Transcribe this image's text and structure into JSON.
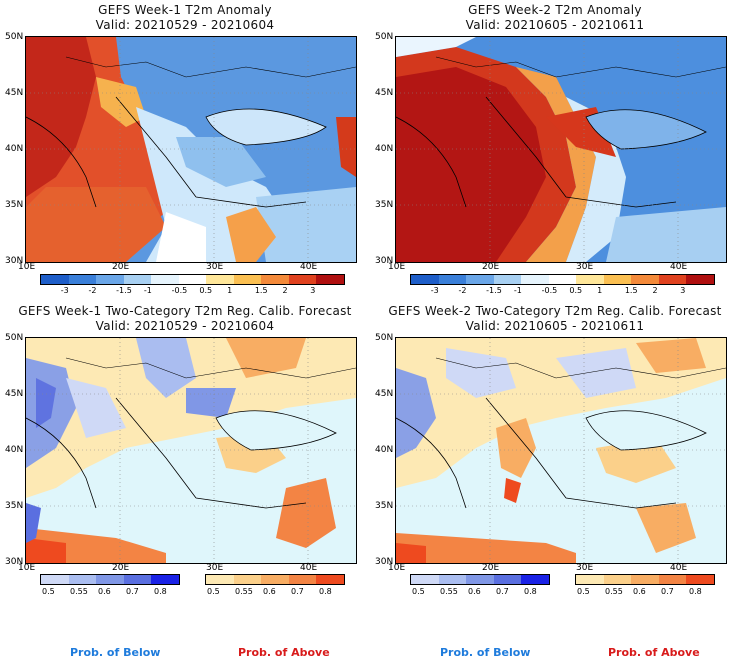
{
  "panels": [
    {
      "title": "GEFS Week-1 T2m Anomaly",
      "valid": "Valid: 20210529 - 20210604"
    },
    {
      "title": "GEFS Week-2 T2m Anomaly",
      "valid": "Valid: 20210605 - 20210611"
    },
    {
      "title": "GEFS Week-1 Two-Category T2m Reg. Calib. Forecast",
      "valid": "Valid: 20210529 - 20210604"
    },
    {
      "title": "GEFS Week-2 Two-Category T2m Reg. Calib. Forecast",
      "valid": "Valid: 20210605 - 20210611"
    }
  ],
  "lat_labels": [
    "50N",
    "45N",
    "40N",
    "35N",
    "30N"
  ],
  "lon_labels": [
    "10E",
    "20E",
    "30E",
    "40E"
  ],
  "anomaly_colorbar": {
    "ticks": [
      "-3",
      "-2",
      "-1.5",
      "-1",
      "-0.5",
      "0.5",
      "1",
      "1.5",
      "2",
      "3"
    ],
    "colors": [
      "#1e5ec9",
      "#3a7fd9",
      "#6aa6e8",
      "#a8d0f2",
      "#e6f4fd",
      "#ffffff",
      "#ffe79a",
      "#fbc052",
      "#f48a3a",
      "#e0421f",
      "#b01010"
    ]
  },
  "prob_colorbar_below": {
    "ticks": [
      "0.5",
      "0.55",
      "0.6",
      "0.7",
      "0.8"
    ],
    "colors": [
      "#cfd9f6",
      "#aabdf0",
      "#8097e6",
      "#5a6fe0",
      "#1a22e6"
    ]
  },
  "prob_colorbar_above": {
    "ticks": [
      "0.5",
      "0.55",
      "0.6",
      "0.7",
      "0.8"
    ],
    "colors": [
      "#fde9b4",
      "#fbd08a",
      "#f8ad63",
      "#f38444",
      "#ee4a1f"
    ]
  },
  "legend": {
    "below": "Prob. of Below",
    "above": "Prob. of Above"
  },
  "colors": {
    "below_label": "#1e7bdc",
    "above_label": "#d81b1b"
  }
}
